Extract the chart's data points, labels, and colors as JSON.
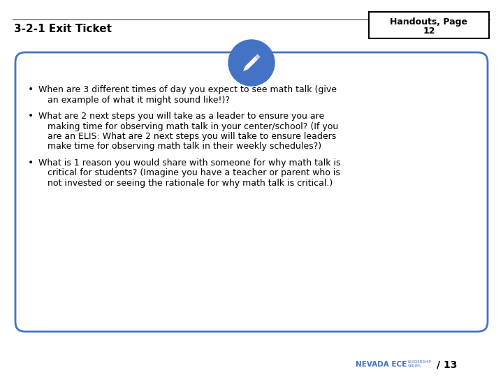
{
  "title": "3-2-1 Exit Ticket",
  "handout_line1": "Handouts, Page",
  "handout_line2": "12",
  "page_num": "/ 13",
  "bullet1_line1": "When are 3 different times of day you expect to see math talk (give",
  "bullet1_line2": "an example of what it might sound like!)?",
  "bullet2_line1": "What are 2 next steps you will take as a leader to ensure you are",
  "bullet2_line2": "making time for observing math talk in your center/school? (If you",
  "bullet2_line3": "are an ELIS: What are 2 next steps you will take to ensure leaders",
  "bullet2_line4": "make time for observing math talk in their weekly schedules?)",
  "bullet3_line1": "What is 1 reason you would share with someone for why math talk is",
  "bullet3_line2": "critical for students? (Imagine you have a teacher or parent who is",
  "bullet3_line3": "not invested or seeing the rationale for why math talk is critical.)",
  "background_color": "#ffffff",
  "title_color": "#000000",
  "box_border_color": "#4472C4",
  "circle_color": "#4472C4",
  "text_color": "#000000",
  "top_line_color": "#7f7f7f",
  "handout_box_color": "#000000",
  "nevada_color": "#4472C4",
  "font_size_title": 11,
  "font_size_body": 9,
  "font_size_handout": 9,
  "font_size_page": 10
}
